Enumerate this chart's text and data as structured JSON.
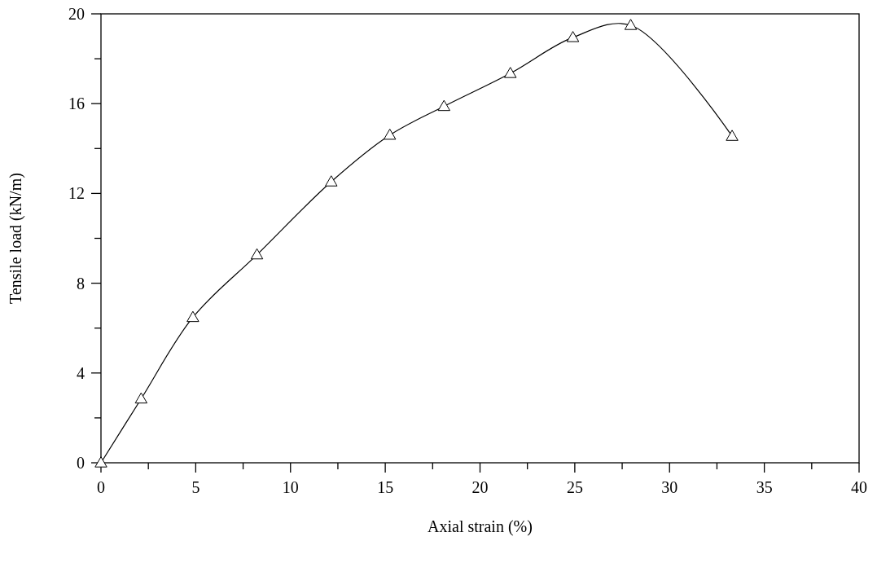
{
  "chart_data": {
    "type": "line",
    "xlabel": "Axial strain (%)",
    "ylabel": "Tensile load (kN/m)",
    "x": [
      0,
      2.12,
      4.85,
      8.23,
      12.15,
      15.24,
      18.1,
      21.6,
      24.9,
      27.95,
      33.3
    ],
    "series": [
      {
        "color": "#000000",
        "values": [
          0,
          2.85,
          6.48,
          9.27,
          12.52,
          14.6,
          15.88,
          17.35,
          18.95,
          19.49,
          14.55
        ]
      }
    ],
    "xlim": [
      0,
      40
    ],
    "ylim": [
      0,
      20
    ],
    "xticks": [
      0,
      {
        "value": 2.5,
        "label": null
      },
      5,
      {
        "value": 7.5,
        "label": null
      },
      10,
      {
        "value": 12.5,
        "label": null
      },
      15,
      {
        "value": 17.5,
        "label": null
      },
      20,
      {
        "value": 22.5,
        "label": null
      },
      25,
      {
        "value": 27.5,
        "label": null
      },
      30,
      {
        "value": 32.5,
        "label": null
      },
      35,
      {
        "value": 37.5,
        "label": null
      },
      40
    ],
    "yticks": [
      0,
      {
        "value": 2,
        "label": null
      },
      4,
      {
        "value": 6,
        "label": null
      },
      8,
      {
        "value": 10,
        "label": null
      },
      12,
      {
        "value": 14,
        "label": null
      },
      16,
      {
        "value": 18,
        "label": null
      },
      20
    ],
    "marker": "triangle",
    "line_style": "solid"
  }
}
